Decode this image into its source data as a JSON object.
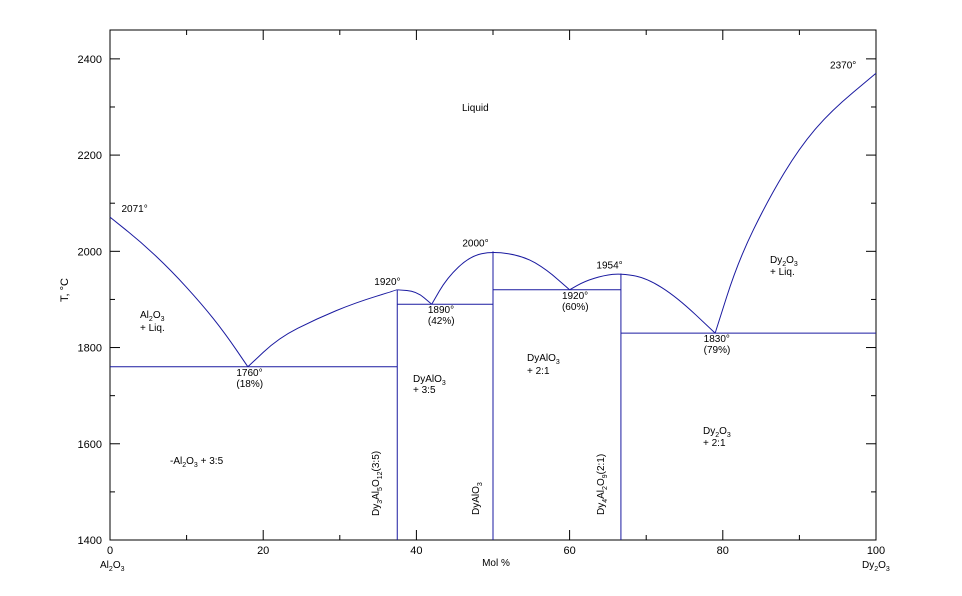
{
  "chart_data": {
    "type": "line",
    "title": "",
    "xlabel": "Mol %",
    "ylabel": "T, °C",
    "xlim": [
      0,
      100
    ],
    "ylim": [
      1400,
      2460
    ],
    "x_ticks": [
      0,
      20,
      40,
      60,
      80,
      100
    ],
    "y_ticks": [
      1400,
      1600,
      1800,
      2000,
      2200,
      2400
    ],
    "x_end_labels": {
      "left": "Al2O3",
      "right": "Dy2O3"
    },
    "line_color": "#1a1aa0",
    "liquidus_left": [
      [
        0,
        2071
      ],
      [
        4,
        2020
      ],
      [
        8,
        1960
      ],
      [
        12,
        1890
      ],
      [
        15,
        1830
      ],
      [
        18,
        1760
      ]
    ],
    "liquidus_2": [
      [
        18,
        1760
      ],
      [
        22,
        1820
      ],
      [
        27,
        1860
      ],
      [
        32,
        1893
      ],
      [
        37.5,
        1920
      ]
    ],
    "liquidus_3": [
      [
        37.5,
        1920
      ],
      [
        40,
        1917
      ],
      [
        42,
        1890
      ]
    ],
    "liquidus_4": [
      [
        42,
        1890
      ],
      [
        44,
        1945
      ],
      [
        47,
        1990
      ],
      [
        50,
        2000
      ],
      [
        54,
        1990
      ],
      [
        57,
        1962
      ],
      [
        60,
        1920
      ]
    ],
    "liquidus_5": [
      [
        60,
        1920
      ],
      [
        62,
        1938
      ],
      [
        64.5,
        1950
      ],
      [
        66.7,
        1954
      ],
      [
        70,
        1945
      ],
      [
        74,
        1905
      ],
      [
        79,
        1830
      ]
    ],
    "liquidus_right": [
      [
        79,
        1830
      ],
      [
        82,
        1980
      ],
      [
        86,
        2110
      ],
      [
        90,
        2215
      ],
      [
        94,
        2290
      ],
      [
        100,
        2370
      ]
    ],
    "eutectic_lines": [
      {
        "x1": 0,
        "x2": 37.5,
        "y": 1760
      },
      {
        "x1": 37.5,
        "x2": 50,
        "y": 1890
      },
      {
        "x1": 50,
        "x2": 66.7,
        "y": 1920
      },
      {
        "x1": 66.7,
        "x2": 100,
        "y": 1830
      }
    ],
    "compound_lines": [
      {
        "x": 37.5,
        "ytop": 1920,
        "label": "Dy3Al5O12(3:5)"
      },
      {
        "x": 50,
        "ytop": 2000,
        "label": "DyAlO3"
      },
      {
        "x": 66.7,
        "ytop": 1954,
        "label": "Dy4Al2O9(2:1)"
      }
    ],
    "annotations": [
      {
        "x": 1.5,
        "y": 2071,
        "text": "2071°"
      },
      {
        "x": 94,
        "y": 2370,
        "text": "2370°"
      },
      {
        "x": 34.5,
        "y": 1920,
        "text": "1920°"
      },
      {
        "x": 46,
        "y": 2000,
        "text": "2000°"
      },
      {
        "x": 63.5,
        "y": 1954,
        "text": "1954°"
      },
      {
        "x": 16.5,
        "y": 1760,
        "text": "1760°",
        "sub": "(18%)"
      },
      {
        "x": 41.5,
        "y": 1890,
        "text": "1890°",
        "sub": "(42%)"
      },
      {
        "x": 59,
        "y": 1920,
        "text": "1920°",
        "sub": "(60%)"
      },
      {
        "x": 77.5,
        "y": 1830,
        "text": "1830°",
        "sub": "(79%)"
      }
    ],
    "regions": [
      {
        "text": "Liquid"
      },
      {
        "text": "Al2O3",
        "sub": "+ Liq."
      },
      {
        "text": "Dy2O3",
        "sub": "+ Liq."
      },
      {
        "text": "DyAlO3",
        "sub": "+ 3:5"
      },
      {
        "text": "DyAlO3",
        "sub": "+ 2:1"
      },
      {
        "text": "Dy2O3",
        "sub": "+ 2:1"
      },
      {
        "text": "-Al2O3 + 3:5"
      }
    ]
  }
}
